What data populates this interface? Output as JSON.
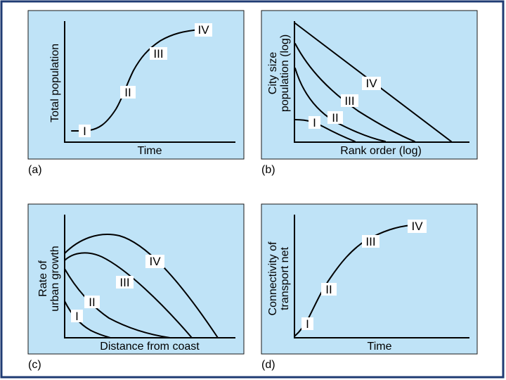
{
  "panels": {
    "a": {
      "letter": "(a)",
      "xlabel": "Time",
      "ylabel": [
        "Total population"
      ],
      "stages": [
        "I",
        "II",
        "III",
        "IV"
      ]
    },
    "b": {
      "letter": "(b)",
      "xlabel": "Rank order (log)",
      "ylabel": [
        "City size",
        "population (log)"
      ],
      "stages": [
        "I",
        "II",
        "III",
        "IV"
      ]
    },
    "c": {
      "letter": "(c)",
      "xlabel": "Distance from coast",
      "ylabel": [
        "Rate of",
        "urban growth"
      ],
      "stages": [
        "I",
        "II",
        "III",
        "IV"
      ]
    },
    "d": {
      "letter": "(d)",
      "xlabel": "Time",
      "ylabel": [
        "Connectivity of",
        "transport net"
      ],
      "stages": [
        "I",
        "II",
        "III",
        "IV"
      ]
    }
  },
  "colors": {
    "panel_fill": "#bfe3f7",
    "frame": "#1f3b73",
    "ink": "#000000"
  }
}
